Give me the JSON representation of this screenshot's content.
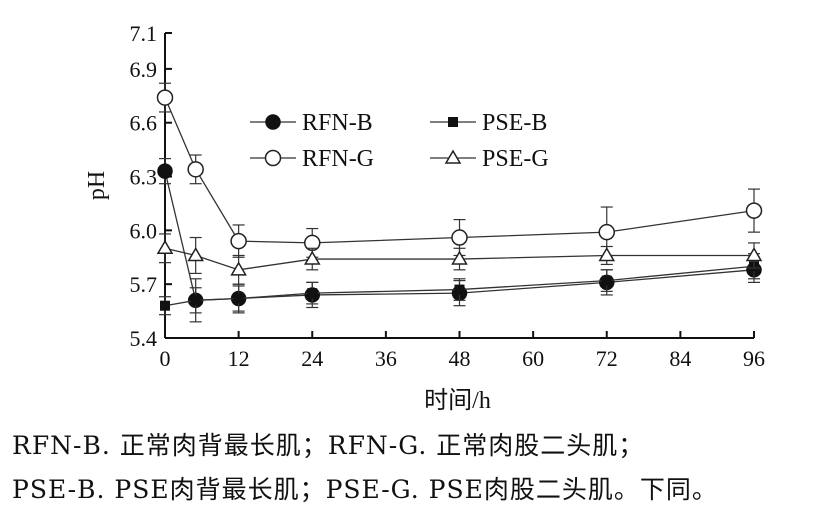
{
  "chart_data": {
    "type": "line",
    "xlabel": "时间/h",
    "ylabel": "pH",
    "xlim": [
      0,
      96
    ],
    "ylim": [
      5.4,
      7.1
    ],
    "xticks": [
      "0",
      "12",
      "24",
      "36",
      "48",
      "60",
      "72",
      "84",
      "96"
    ],
    "yticks": [
      "5.4",
      "5.7",
      "6.0",
      "6.3",
      "6.6",
      "6.9",
      "7.1"
    ],
    "grid": false,
    "legend_position": "top-center",
    "series": [
      {
        "name": "RFN-B",
        "marker": "filled-circle",
        "x": [
          0,
          5,
          12,
          24,
          48,
          72,
          96
        ],
        "y": [
          6.33,
          5.61,
          5.62,
          5.64,
          5.65,
          5.71,
          5.78
        ],
        "err": [
          0.07,
          0.07,
          0.07,
          0.07,
          0.07,
          0.07,
          0.07
        ]
      },
      {
        "name": "RFN-G",
        "marker": "open-circle",
        "x": [
          0,
          5,
          12,
          24,
          48,
          72,
          96
        ],
        "y": [
          6.74,
          6.34,
          5.94,
          5.93,
          5.96,
          5.99,
          6.11
        ],
        "err": [
          0.08,
          0.08,
          0.09,
          0.08,
          0.1,
          0.14,
          0.12
        ]
      },
      {
        "name": "PSE-B",
        "marker": "filled-square",
        "x": [
          0,
          5,
          12,
          24,
          48,
          72,
          96
        ],
        "y": [
          5.58,
          5.61,
          5.62,
          5.65,
          5.67,
          5.72,
          5.8
        ],
        "err": [
          0.05,
          0.12,
          0.08,
          0.06,
          0.06,
          0.06,
          0.07
        ]
      },
      {
        "name": "PSE-G",
        "marker": "open-triangle",
        "x": [
          0,
          5,
          12,
          24,
          48,
          72,
          96
        ],
        "y": [
          5.9,
          5.86,
          5.78,
          5.84,
          5.84,
          5.86,
          5.86
        ],
        "err": [
          0.08,
          0.1,
          0.08,
          0.06,
          0.06,
          0.05,
          0.07
        ]
      }
    ]
  },
  "caption": {
    "line1": "RFN-B. 正常肉背最长肌；RFN-G. 正常肉股二头肌；",
    "line2": "PSE-B. PSE肉背最长肌；PSE-G. PSE肉股二头肌。下同。"
  }
}
